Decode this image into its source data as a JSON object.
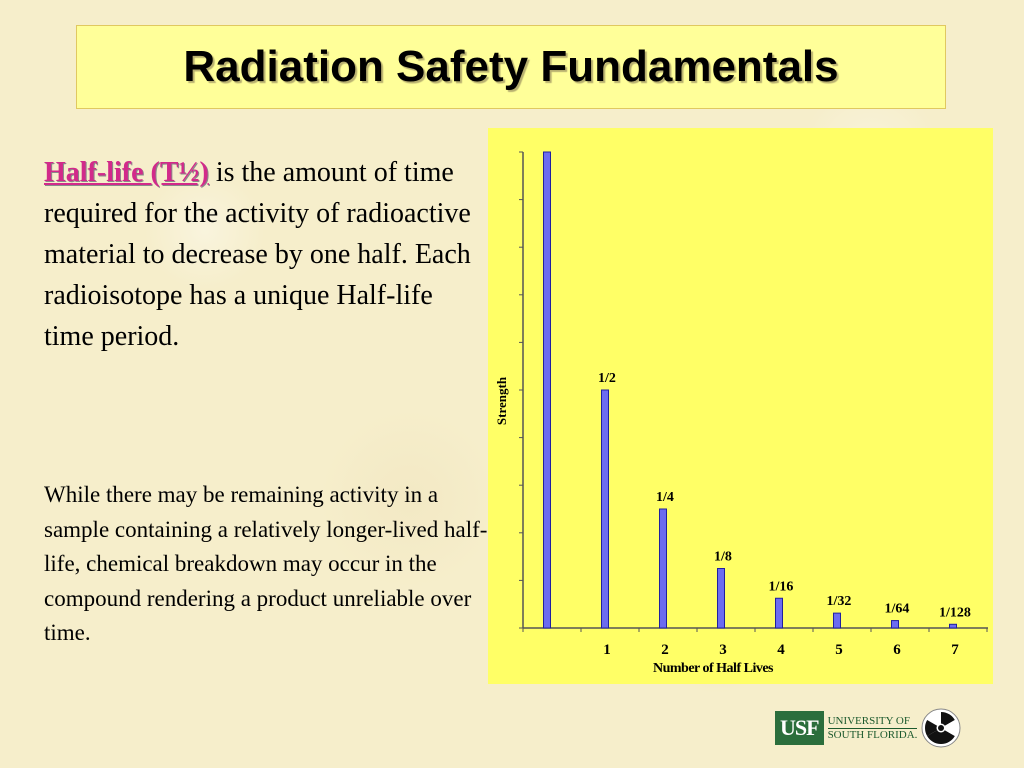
{
  "title": "Radiation Safety Fundamentals",
  "intro": {
    "term": "Half-life (T½)",
    "text": " is the amount of time required for the activity of radioactive material to decrease by one half.  Each radioisotope has a unique Half-life time period."
  },
  "note": "While there may be remaining activity in a sample containing a relatively longer-lived half-life, chemical breakdown may occur in the compound rendering a product unreliable over time.",
  "chart_data": {
    "type": "bar",
    "xlabel": "Number of Half Lives",
    "ylabel": "Strength",
    "x": [
      0,
      1,
      2,
      3,
      4,
      5,
      6,
      7
    ],
    "tick_labels": [
      "1",
      "2",
      "3",
      "4",
      "5",
      "6",
      "7"
    ],
    "values": [
      1,
      0.5,
      0.25,
      0.125,
      0.0625,
      0.03125,
      0.015625,
      0.0078125
    ],
    "bar_labels": [
      "",
      "1/2",
      "1/4",
      "1/8",
      "1/16",
      "1/32",
      "1/64",
      "1/128"
    ],
    "ylim": [
      0,
      1
    ],
    "y_minor_ticks": 11,
    "grid": false,
    "colors": {
      "bar": "#6c6cf0",
      "bar_stroke": "#2020a0",
      "panel": "#ffff66"
    }
  },
  "logo": {
    "mark": "USF",
    "line1": "UNIVERSITY OF",
    "line2": "SOUTH FLORIDA.",
    "icon": "radiation-trefoil-icon"
  }
}
